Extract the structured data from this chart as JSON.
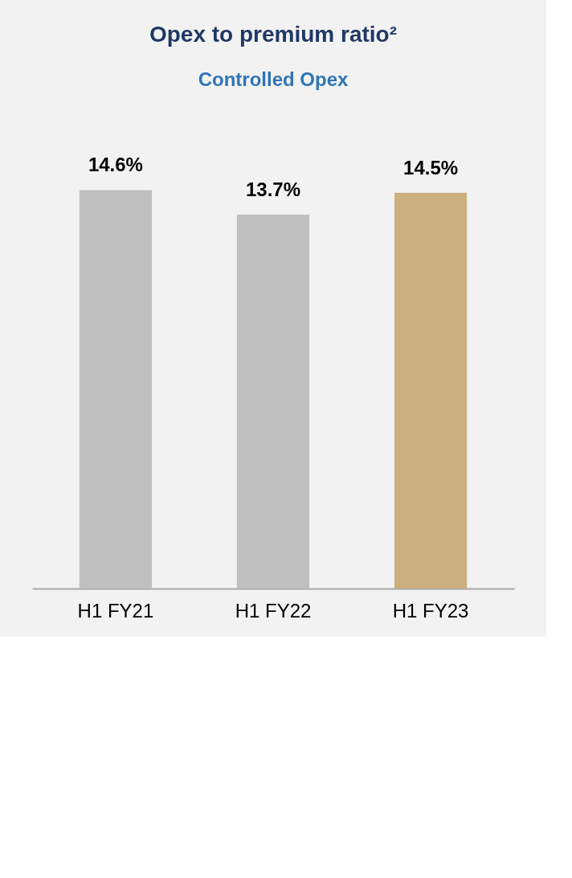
{
  "chart_data": {
    "type": "bar",
    "title": "Opex to premium ratio²",
    "subtitle": "Controlled Opex",
    "categories": [
      "H1 FY21",
      "H1 FY22",
      "H1 FY23"
    ],
    "values": [
      14.6,
      13.7,
      14.5
    ],
    "colors": [
      "#bfbfbf",
      "#bfbfbf",
      "#ccaf7f"
    ],
    "value_labels": [
      "14.6%",
      "13.7%",
      "14.5%"
    ]
  }
}
